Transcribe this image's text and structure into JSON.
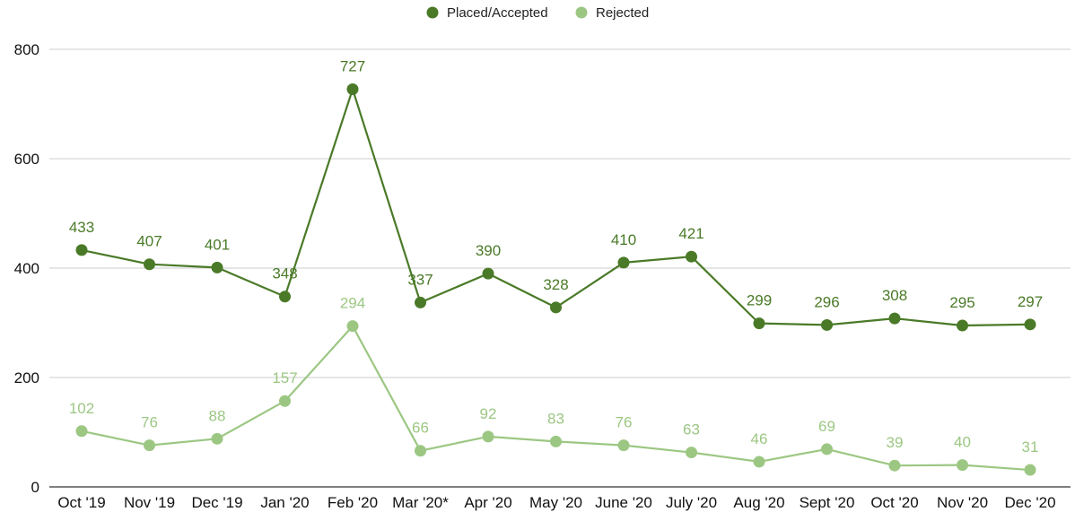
{
  "chart_data": {
    "type": "line",
    "title": "",
    "xlabel": "",
    "ylabel": "",
    "ylim": [
      0,
      800
    ],
    "yticks": [
      0,
      200,
      400,
      600,
      800
    ],
    "grid": true,
    "legend_position": "top-center",
    "categories": [
      "Oct '19",
      "Nov '19",
      "Dec '19",
      "Jan '20",
      "Feb '20",
      "Mar '20*",
      "Apr '20",
      "May '20",
      "June '20",
      "July '20",
      "Aug '20",
      "Sept '20",
      "Oct '20",
      "Nov '20",
      "Dec '20"
    ],
    "series": [
      {
        "name": "Placed/Accepted",
        "color": "#4a7a28",
        "values": [
          433,
          407,
          401,
          348,
          727,
          337,
          390,
          328,
          410,
          421,
          299,
          296,
          308,
          295,
          297
        ]
      },
      {
        "name": "Rejected",
        "color": "#9cc783",
        "values": [
          102,
          76,
          88,
          157,
          294,
          66,
          92,
          83,
          76,
          63,
          46,
          69,
          39,
          40,
          31
        ]
      }
    ]
  }
}
